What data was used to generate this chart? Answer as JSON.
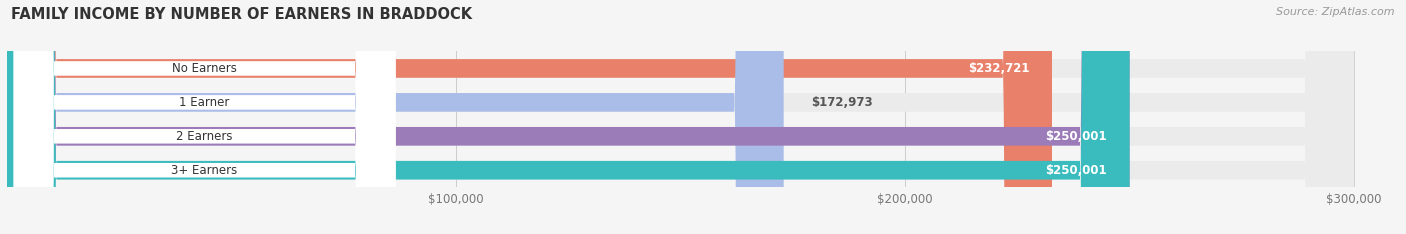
{
  "title": "FAMILY INCOME BY NUMBER OF EARNERS IN BRADDOCK",
  "source": "Source: ZipAtlas.com",
  "categories": [
    "No Earners",
    "1 Earner",
    "2 Earners",
    "3+ Earners"
  ],
  "values": [
    232721,
    172973,
    250001,
    250001
  ],
  "bar_colors": [
    "#E8806A",
    "#AABDE8",
    "#9B7BB8",
    "#3ABCBE"
  ],
  "value_label_white": [
    true,
    false,
    true,
    true
  ],
  "xlim_data": [
    0,
    310000
  ],
  "bar_max": 300000,
  "xticks": [
    100000,
    200000,
    300000
  ],
  "xtick_labels": [
    "$100,000",
    "$200,000",
    "$300,000"
  ],
  "value_labels": [
    "$232,721",
    "$172,973",
    "$250,001",
    "$250,001"
  ],
  "background_color": "#f5f5f5",
  "bar_background": "#ebebeb",
  "label_pill_color": "#ffffff",
  "title_fontsize": 10.5,
  "bar_label_fontsize": 8.5,
  "value_fontsize": 8.5,
  "source_fontsize": 8
}
